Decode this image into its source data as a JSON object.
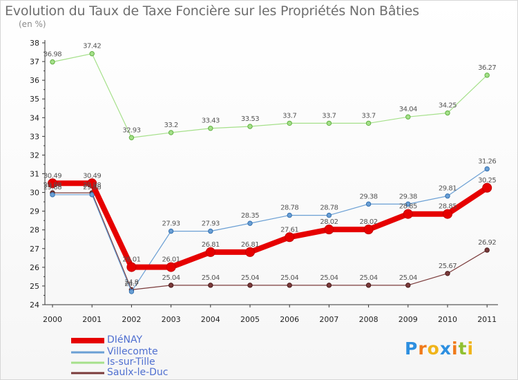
{
  "title": "Evolution du Taux de Taxe Foncière sur les Propriétés Non Bâties",
  "subtitle": "(en %)",
  "logo": {
    "text": "Proxiti",
    "letters": [
      "P",
      "r",
      "o",
      "x",
      "i",
      "t",
      "i"
    ],
    "colors": [
      "#2d8fe0",
      "#f07a1a",
      "#f0b41a",
      "#2d8fe0",
      "#f07a1a",
      "#90c030",
      "#f0b41a"
    ]
  },
  "chart_data": {
    "type": "line",
    "title": "Evolution du Taux de Taxe Foncière sur les Propriétés Non Bâties",
    "ylabel": "(en %)",
    "xlabel": "",
    "categories": [
      "2000",
      "2001",
      "2002",
      "2003",
      "2004",
      "2005",
      "2006",
      "2007",
      "2008",
      "2009",
      "2010",
      "2011"
    ],
    "ylim": [
      24,
      38
    ],
    "yticks": [
      24,
      25,
      26,
      27,
      28,
      29,
      30,
      31,
      32,
      33,
      34,
      35,
      36,
      37,
      38
    ],
    "grid": false,
    "series": [
      {
        "name": "DIéNAY",
        "color": "#e60000",
        "values": [
          30.49,
          30.49,
          26.01,
          26.01,
          26.81,
          26.81,
          27.61,
          28.02,
          28.02,
          28.85,
          28.85,
          30.25
        ],
        "labels": [
          "30.49",
          "30.49",
          "26.01",
          "26.01",
          "26.81",
          "26.81",
          "27.61",
          "28.02",
          "28.02",
          "28.85",
          "28.85",
          "30.25"
        ]
      },
      {
        "name": "Villecomte",
        "color": "#6a9fd4",
        "values": [
          29.88,
          29.88,
          24.7,
          27.93,
          27.93,
          28.35,
          28.78,
          28.78,
          29.38,
          29.38,
          29.81,
          31.26
        ],
        "labels": [
          "29.88",
          "29.88",
          "24.7",
          "27.93",
          "27.93",
          "28.35",
          "28.78",
          "28.78",
          "29.38",
          "29.38",
          "29.81",
          "31.26"
        ]
      },
      {
        "name": "Is-sur-Tille",
        "color": "#a5e08a",
        "values": [
          36.98,
          37.42,
          32.93,
          33.2,
          33.43,
          33.53,
          33.7,
          33.7,
          33.7,
          34.04,
          34.25,
          36.27
        ],
        "labels": [
          "36.98",
          "37.42",
          "32.93",
          "33.2",
          "33.43",
          "33.53",
          "33.7",
          "33.7",
          "33.7",
          "34.04",
          "34.25",
          "36.27"
        ]
      },
      {
        "name": "Saulx-le-Duc",
        "color": "#7a3a3a",
        "values": [
          29.98,
          29.98,
          24.8,
          25.04,
          25.04,
          25.04,
          25.04,
          25.04,
          25.04,
          25.04,
          25.67,
          26.92
        ],
        "labels": [
          "29.98",
          "29.98",
          "24.8",
          "25.04",
          "25.04",
          "25.04",
          "25.04",
          "25.04",
          "25.04",
          "25.04",
          "25.67",
          "26.92"
        ]
      }
    ]
  }
}
